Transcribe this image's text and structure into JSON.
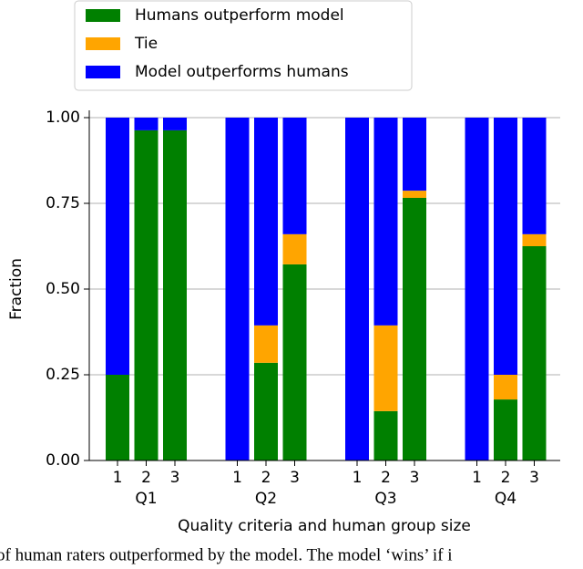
{
  "chart_data": {
    "type": "stacked-bar",
    "x_label": "Quality criteria and human group size",
    "y_label": "Fraction",
    "categories": [
      "1",
      "2",
      "3",
      "1",
      "2",
      "3",
      "1",
      "2",
      "3",
      "1",
      "2",
      "3"
    ],
    "groups": [
      "Q1",
      "Q2",
      "Q3",
      "Q4"
    ],
    "series": [
      {
        "name": "Humans outperform model",
        "color": "#008000",
        "values": [
          0.25,
          0.963,
          0.963,
          0,
          0.285,
          0.572,
          0,
          0.144,
          0.766,
          0,
          0.178,
          0.625
        ]
      },
      {
        "name": "Tie",
        "color": "#ffa500",
        "values": [
          0,
          0,
          0,
          0,
          0.109,
          0.088,
          0,
          0.25,
          0.021,
          0,
          0.072,
          0.035
        ]
      },
      {
        "name": "Model outperforms humans",
        "color": "#0000ff",
        "values": [
          0.75,
          0.037,
          0.037,
          1,
          0.606,
          0.34,
          1,
          0.606,
          0.213,
          1,
          0.75,
          0.34
        ]
      }
    ],
    "ylim": [
      0,
      1
    ],
    "yticks": [
      {
        "value": 0,
        "label": "0.00"
      },
      {
        "value": 0.25,
        "label": "0.25"
      },
      {
        "value": 0.5,
        "label": "0.50"
      },
      {
        "value": 0.75,
        "label": "0.75"
      },
      {
        "value": 1,
        "label": "1.00"
      }
    ],
    "grid": true,
    "legend": "upper left"
  },
  "caption": "of human raters outperformed by the model. The model ‘wins’ if i"
}
